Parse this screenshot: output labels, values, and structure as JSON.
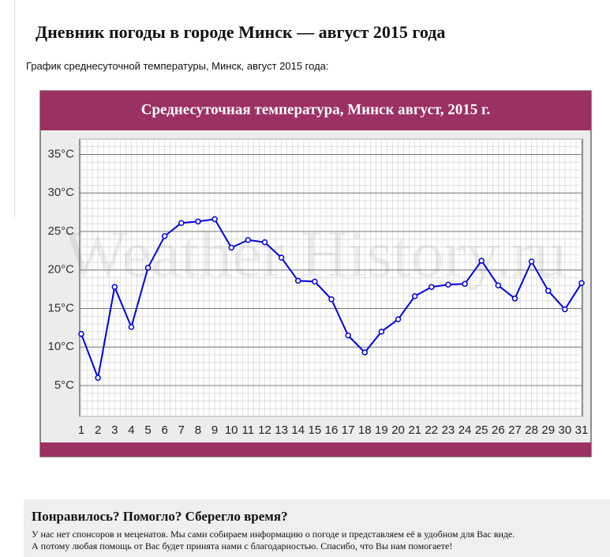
{
  "heading": "Дневник погоды в городе Минск — август 2015 года",
  "intro": "График среднесуточной температуры, Минск, август 2015 года:",
  "chart_data": {
    "type": "line",
    "title": "Среднесуточная температура, Минск   август, 2015 г.",
    "watermark": "Weather History.ru",
    "categories": [
      "1",
      "2",
      "3",
      "4",
      "5",
      "6",
      "7",
      "8",
      "9",
      "10",
      "11",
      "12",
      "13",
      "14",
      "15",
      "16",
      "17",
      "18",
      "19",
      "20",
      "21",
      "22",
      "23",
      "24",
      "25",
      "26",
      "27",
      "28",
      "29",
      "30",
      "31"
    ],
    "series": [
      {
        "color": "#0000dd",
        "values": [
          11.7,
          6.0,
          17.8,
          12.6,
          20.3,
          24.4,
          26.1,
          26.3,
          26.6,
          22.9,
          23.9,
          23.6,
          21.6,
          18.6,
          18.5,
          16.2,
          11.5,
          9.3,
          12.0,
          13.6,
          16.6,
          17.8,
          18.1,
          18.2,
          21.2,
          18.0,
          16.3,
          21.1,
          17.3,
          14.9,
          18.3
        ]
      }
    ],
    "ylim": [
      1,
      37
    ],
    "yticks": [
      {
        "value": 5,
        "label": "5°C"
      },
      {
        "value": 10,
        "label": "10°C"
      },
      {
        "value": 15,
        "label": "15°C"
      },
      {
        "value": 20,
        "label": "20°C"
      },
      {
        "value": 25,
        "label": "25°C"
      },
      {
        "value": 30,
        "label": "30°C"
      },
      {
        "value": 35,
        "label": "35°C"
      }
    ],
    "grid": true
  },
  "footer": {
    "title": "Понравилось? Помогло? Сберегло время?",
    "lines": [
      "У нас нет спонсоров и меценатов. Мы сами собираем информацию о погоде и представляем её в удобном для Вас виде.",
      "А потому любая помощь от Вас будет принята нами с благодарностью. Спасибо, что Вы нам помогаете!"
    ]
  }
}
